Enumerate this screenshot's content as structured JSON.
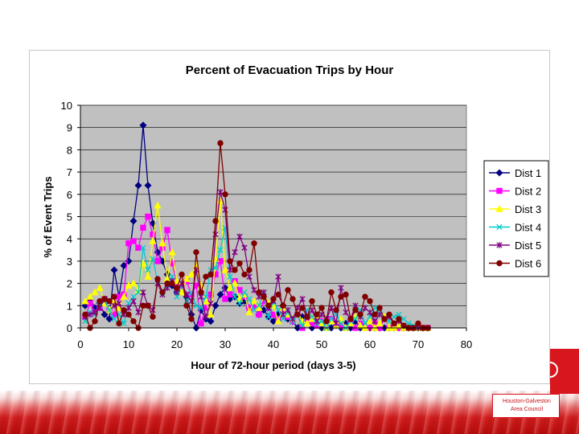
{
  "chart_data": {
    "type": "line",
    "title": "Percent of Evacuation Trips by Hour",
    "xlabel": "Hour of 72-hour period (days 3-5)",
    "ylabel": "% of Event Trips",
    "xlim": [
      0,
      80
    ],
    "ylim": [
      0,
      10
    ],
    "xticks": [
      0,
      10,
      20,
      30,
      40,
      50,
      60,
      70,
      80
    ],
    "yticks": [
      0,
      1,
      2,
      3,
      4,
      5,
      6,
      7,
      8,
      9,
      10
    ],
    "grid": "horizontal",
    "legend": "right",
    "x": [
      1,
      2,
      3,
      4,
      5,
      6,
      7,
      8,
      9,
      10,
      11,
      12,
      13,
      14,
      15,
      16,
      17,
      18,
      19,
      20,
      21,
      22,
      23,
      24,
      25,
      26,
      27,
      28,
      29,
      30,
      31,
      32,
      33,
      34,
      35,
      36,
      37,
      38,
      39,
      40,
      41,
      42,
      43,
      44,
      45,
      46,
      47,
      48,
      49,
      50,
      51,
      52,
      53,
      54,
      55,
      56,
      57,
      58,
      59,
      60,
      61,
      62,
      63,
      64,
      65,
      66,
      67,
      68,
      69,
      70,
      71,
      72
    ],
    "series": [
      {
        "name": "Dist 1",
        "color": "#000080",
        "marker": "diamond",
        "values": [
          1.0,
          1.3,
          0.9,
          1.1,
          0.6,
          0.4,
          2.6,
          1.4,
          2.8,
          3.0,
          4.8,
          6.4,
          9.1,
          6.4,
          4.7,
          3.4,
          3.0,
          2.4,
          1.9,
          1.6,
          1.7,
          1.4,
          0.6,
          0.0,
          0.8,
          0.4,
          0.3,
          1.0,
          1.5,
          1.8,
          1.3,
          1.4,
          1.1,
          1.2,
          0.9,
          1.0,
          0.6,
          0.8,
          0.5,
          0.3,
          0.6,
          1.0,
          0.4,
          0.3,
          0.0,
          0.5,
          0.4,
          0.0,
          0.2,
          0.0,
          0.3,
          0.0,
          0.1,
          0.0,
          0.2,
          0.0,
          0.3,
          0.0,
          0.1,
          0.0,
          0.0,
          0.0,
          0.0,
          0.0,
          0.0,
          0.0,
          0.0,
          0.0,
          0.0,
          0.0,
          0.0,
          0.0
        ]
      },
      {
        "name": "Dist 2",
        "color": "#ff00ff",
        "marker": "square",
        "values": [
          0.5,
          1.1,
          0.7,
          0.9,
          1.3,
          0.8,
          0.6,
          1.4,
          1.5,
          3.8,
          3.9,
          3.6,
          4.5,
          5.0,
          4.2,
          3.0,
          3.6,
          4.4,
          2.9,
          2.0,
          1.8,
          2.1,
          1.5,
          1.9,
          0.2,
          0.9,
          1.5,
          2.4,
          3.0,
          1.3,
          1.5,
          2.1,
          1.7,
          1.4,
          0.9,
          1.0,
          0.6,
          1.2,
          0.9,
          0.6,
          0.4,
          0.8,
          0.5,
          0.3,
          0.6,
          0.0,
          0.4,
          0.2,
          0.1,
          0.3,
          0.0,
          0.4,
          0.2,
          0.1,
          0.0,
          0.3,
          0.0,
          0.2,
          0.0,
          0.0,
          0.2,
          0.0,
          0.4,
          0.0,
          0.0,
          0.0,
          0.0,
          0.0,
          0.0,
          0.0,
          0.0,
          0.0
        ]
      },
      {
        "name": "Dist 3",
        "color": "#ffff00",
        "marker": "triangle",
        "values": [
          1.2,
          1.4,
          1.6,
          1.8,
          1.1,
          0.8,
          1.2,
          0.9,
          1.4,
          1.9,
          2.0,
          1.7,
          2.9,
          2.3,
          3.9,
          5.5,
          3.8,
          2.2,
          3.4,
          2.1,
          1.6,
          2.2,
          2.4,
          2.8,
          1.9,
          1.2,
          0.6,
          3.1,
          5.7,
          2.6,
          1.8,
          2.0,
          1.3,
          1.5,
          0.7,
          1.2,
          0.9,
          1.4,
          1.1,
          1.0,
          0.3,
          0.9,
          0.6,
          0.4,
          0.6,
          0.3,
          0.2,
          0.4,
          0.5,
          0.2,
          0.0,
          0.3,
          0.1,
          0.4,
          0.0,
          0.2,
          0.5,
          0.1,
          0.0,
          0.3,
          0.0,
          0.2,
          0.5,
          0.0,
          0.0,
          0.1,
          0.0,
          0.0,
          0.0,
          0.0,
          0.0,
          0.0
        ]
      },
      {
        "name": "Dist 4",
        "color": "#00cccc",
        "marker": "x",
        "values": [
          0.3,
          0.7,
          0.6,
          1.0,
          1.2,
          0.8,
          0.4,
          0.6,
          0.2,
          1.1,
          1.4,
          1.6,
          3.6,
          2.6,
          3.1,
          2.1,
          1.6,
          1.9,
          2.3,
          1.4,
          2.0,
          1.2,
          1.6,
          1.0,
          0.9,
          1.4,
          2.6,
          2.7,
          3.5,
          4.5,
          2.3,
          1.4,
          1.1,
          1.6,
          1.3,
          0.8,
          1.0,
          1.5,
          0.5,
          1.2,
          0.8,
          0.4,
          0.7,
          0.3,
          0.6,
          0.1,
          0.8,
          0.5,
          0.2,
          0.3,
          0.0,
          0.4,
          0.6,
          0.2,
          0.0,
          0.3,
          0.4,
          0.8,
          0.2,
          0.5,
          0.9,
          0.7,
          0.4,
          0.3,
          0.5,
          0.6,
          0.4,
          0.2,
          0.1,
          0.0,
          0.0,
          0.0
        ]
      },
      {
        "name": "Dist 5",
        "color": "#800080",
        "marker": "star",
        "values": [
          0.5,
          0.6,
          0.7,
          0.9,
          1.3,
          1.2,
          1.0,
          1.1,
          0.6,
          0.9,
          1.2,
          0.7,
          1.6,
          1.0,
          0.8,
          2.0,
          1.5,
          1.8,
          2.1,
          1.6,
          2.0,
          1.5,
          1.2,
          2.6,
          1.4,
          0.5,
          1.1,
          4.2,
          6.1,
          5.3,
          2.6,
          3.4,
          4.1,
          3.6,
          2.3,
          1.7,
          1.4,
          1.6,
          0.9,
          1.2,
          2.3,
          0.6,
          0.8,
          0.4,
          0.9,
          1.3,
          0.5,
          0.8,
          0.3,
          0.6,
          0.4,
          0.9,
          0.2,
          1.8,
          0.7,
          0.4,
          1.0,
          0.5,
          0.9,
          0.7,
          0.3,
          0.6,
          0.4,
          0.5,
          0.2,
          0.3,
          0.1,
          0.0,
          0.0,
          0.0,
          0.0,
          0.0
        ]
      },
      {
        "name": "Dist 6",
        "color": "#800000",
        "marker": "circle",
        "values": [
          0.6,
          0.0,
          0.3,
          1.2,
          1.3,
          1.2,
          1.4,
          0.2,
          0.8,
          0.6,
          0.3,
          0.0,
          1.0,
          1.0,
          0.5,
          2.2,
          1.6,
          2.0,
          2.0,
          1.8,
          2.4,
          1.0,
          0.4,
          3.4,
          1.6,
          2.3,
          2.4,
          4.8,
          8.3,
          6.0,
          3.0,
          2.6,
          2.9,
          2.4,
          2.6,
          3.8,
          1.6,
          1.4,
          1.0,
          1.3,
          1.5,
          1.0,
          1.7,
          1.3,
          0.6,
          0.9,
          0.5,
          1.2,
          0.6,
          0.9,
          0.3,
          1.6,
          0.8,
          1.4,
          1.5,
          0.4,
          0.8,
          0.6,
          1.4,
          1.2,
          0.6,
          0.9,
          0.4,
          0.6,
          0.2,
          0.4,
          0.1,
          0.0,
          0.0,
          0.2,
          0.0,
          0.0
        ]
      }
    ]
  },
  "logo": {
    "line1": "Houston-Galveston",
    "line2": "Area Council"
  }
}
